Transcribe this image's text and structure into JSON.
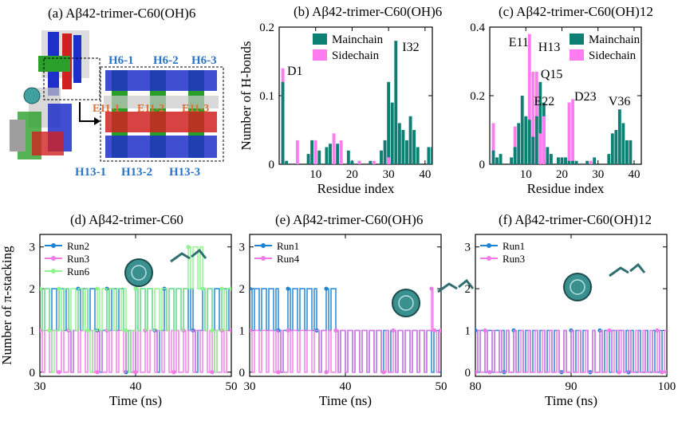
{
  "panels": {
    "a": {
      "title": "(a) Aβ42-trimer-C60(OH)6",
      "labels": [
        "H6-1",
        "H6-2",
        "H6-3",
        "E11-1",
        "E11-2",
        "E11-3",
        "H13-1",
        "H13-2",
        "H13-3"
      ]
    },
    "d_molecule_note": "",
    "colors": {
      "mainchain": "#0e7f73",
      "sidechain": "#ff7bf0",
      "run_blue": "#1f83d3",
      "run_pink": "#ee7be8",
      "run_green": "#8cf58a"
    }
  },
  "chart_data": [
    {
      "id": "b",
      "type": "bar",
      "title": "(b) Aβ42-trimer-C60(OH)6",
      "xlabel": "Residue index",
      "ylabel": "Number of H-bonds",
      "xlim": [
        0,
        42
      ],
      "ylim": [
        0,
        0.2
      ],
      "xticks": [
        10,
        20,
        30,
        40
      ],
      "yticks": [
        0,
        0.1,
        0.2
      ],
      "legend": {
        "placement": "top-left",
        "entries": [
          "Mainchain",
          "Sidechain"
        ]
      },
      "annotations": [
        {
          "text": "D1",
          "x": 1
        },
        {
          "text": "I32",
          "x": 32
        }
      ],
      "series": [
        {
          "name": "Mainchain",
          "residues": [
            1,
            2,
            8,
            9,
            11,
            13,
            14,
            16,
            19,
            20,
            22,
            25,
            28,
            29,
            30,
            31,
            32,
            33,
            34,
            35,
            36,
            37,
            38,
            41,
            42
          ],
          "values": [
            0.12,
            0.005,
            0.015,
            0.035,
            0.02,
            0.025,
            0.03,
            0.03,
            0.02,
            0.005,
            0.005,
            0.005,
            0.02,
            0.035,
            0.12,
            0.09,
            0.18,
            0.06,
            0.05,
            0.035,
            0.07,
            0.05,
            0.025,
            0.025,
            0.025
          ]
        },
        {
          "name": "Sidechain",
          "residues": [
            1,
            5,
            10,
            15,
            17,
            22,
            26,
            30
          ],
          "values": [
            0.14,
            0.035,
            0.035,
            0.045,
            0.035,
            0.005,
            0.005,
            0.01
          ]
        }
      ]
    },
    {
      "id": "c",
      "type": "bar",
      "title": "(c) Aβ42-trimer-C60(OH)12",
      "xlabel": "Residue index",
      "ylabel": "",
      "xlim": [
        0,
        42
      ],
      "ylim": [
        0,
        0.4
      ],
      "xticks": [
        10,
        20,
        30,
        40
      ],
      "yticks": [
        0,
        0.2,
        0.4
      ],
      "legend": {
        "placement": "top-right",
        "entries": [
          "Mainchain",
          "Sidechain"
        ]
      },
      "annotations": [
        {
          "text": "E11",
          "x": 11
        },
        {
          "text": "H13",
          "x": 13
        },
        {
          "text": "Q15",
          "x": 15
        },
        {
          "text": "E22",
          "x": 22
        },
        {
          "text": "D23",
          "x": 23
        },
        {
          "text": "V36",
          "x": 36
        }
      ],
      "series": [
        {
          "name": "Mainchain",
          "residues": [
            1,
            2,
            3,
            6,
            7,
            8,
            9,
            10,
            11,
            12,
            13,
            14,
            15,
            16,
            17,
            19,
            20,
            21,
            22,
            23,
            24,
            27,
            29,
            33,
            34,
            35,
            36,
            37,
            38,
            39
          ],
          "values": [
            0.04,
            0.02,
            0.03,
            0.02,
            0.05,
            0.12,
            0.2,
            0.14,
            0.13,
            0.08,
            0.14,
            0.24,
            0.18,
            0.05,
            0.03,
            0.02,
            0.02,
            0.02,
            0.01,
            0.01,
            0.01,
            0.01,
            0.02,
            0.03,
            0.09,
            0.1,
            0.16,
            0.12,
            0.07,
            0.07
          ]
        },
        {
          "name": "Sidechain",
          "residues": [
            1,
            7,
            11,
            12,
            13,
            14,
            15,
            22,
            23,
            28
          ],
          "values": [
            0.12,
            0.11,
            0.38,
            0.27,
            0.27,
            0.09,
            0.14,
            0.18,
            0.19,
            0.01
          ]
        }
      ]
    },
    {
      "id": "d",
      "type": "line",
      "title": "(d) Aβ42-trimer-C60",
      "xlabel": "Time (ns)",
      "ylabel": "Number of π-stacking",
      "xlim": [
        30,
        50
      ],
      "ylim": [
        -0.1,
        3.3
      ],
      "xticks": [
        30,
        40,
        50
      ],
      "yticks": [
        0,
        1,
        2,
        3
      ],
      "legend": {
        "placement": "top-left",
        "entries": [
          "Run2",
          "Run3",
          "Run6"
        ]
      },
      "series": [
        {
          "name": "Run2",
          "summary": "fluctuates mostly between 1 and 2 over 30-50 ns",
          "segments": [
            [
              30,
              2
            ],
            [
              33,
              1
            ],
            [
              34,
              2
            ],
            [
              36,
              1
            ],
            [
              37,
              2
            ],
            [
              39,
              0
            ],
            [
              40,
              2
            ],
            [
              42,
              1
            ],
            [
              43,
              2
            ],
            [
              46,
              1
            ],
            [
              47,
              2
            ],
            [
              50,
              2
            ]
          ]
        },
        {
          "name": "Run3",
          "summary": "fluctuates between 0 and 1",
          "segments": [
            [
              30,
              1
            ],
            [
              32,
              0
            ],
            [
              33,
              1
            ],
            [
              36,
              0
            ],
            [
              37,
              1
            ],
            [
              40,
              0
            ],
            [
              41,
              1
            ],
            [
              44,
              0
            ],
            [
              45,
              1
            ],
            [
              48,
              0
            ],
            [
              49,
              1
            ],
            [
              50,
              1
            ]
          ]
        },
        {
          "name": "Run6",
          "summary": "mostly 1-2 with excursions to 3 near 45.5-47 ns",
          "segments": [
            [
              30,
              2
            ],
            [
              31,
              1
            ],
            [
              32,
              2
            ],
            [
              35,
              1
            ],
            [
              36,
              2
            ],
            [
              39,
              1
            ],
            [
              40,
              2
            ],
            [
              45.5,
              3
            ],
            [
              47,
              2
            ],
            [
              48,
              1
            ],
            [
              49,
              2
            ],
            [
              50,
              2
            ]
          ]
        }
      ]
    },
    {
      "id": "e",
      "type": "line",
      "title": "(e) Aβ42-trimer-C60(OH)6",
      "xlabel": "Time (ns)",
      "ylabel": "",
      "xlim": [
        30,
        50
      ],
      "ylim": [
        -0.1,
        3.3
      ],
      "xticks": [
        30,
        40,
        50
      ],
      "yticks": [
        0,
        1,
        2,
        3
      ],
      "legend": {
        "placement": "top-left",
        "entries": [
          "Run1",
          "Run4"
        ]
      },
      "series": [
        {
          "name": "Run1",
          "summary": "mostly 2 until about 39 ns, then 1",
          "segments": [
            [
              30,
              2
            ],
            [
              33,
              1
            ],
            [
              34,
              2
            ],
            [
              37,
              1
            ],
            [
              38,
              2
            ],
            [
              39,
              1
            ],
            [
              50,
              1
            ]
          ]
        },
        {
          "name": "Run4",
          "summary": "fluctuates between 0 and 1, brief spike to 2 near 49 ns",
          "segments": [
            [
              30,
              1
            ],
            [
              33,
              0
            ],
            [
              34,
              1
            ],
            [
              38,
              0
            ],
            [
              39,
              1
            ],
            [
              44,
              0
            ],
            [
              45,
              1
            ],
            [
              49,
              2
            ],
            [
              49.3,
              1
            ],
            [
              50,
              1
            ]
          ]
        }
      ]
    },
    {
      "id": "f",
      "type": "line",
      "title": "(f) Aβ42-trimer-C60(OH)12",
      "xlabel": "Time (ns)",
      "ylabel": "",
      "xlim": [
        80,
        100
      ],
      "ylim": [
        -0.1,
        3.3
      ],
      "xticks": [
        80,
        90,
        100
      ],
      "yticks": [
        0,
        1,
        2,
        3
      ],
      "legend": {
        "placement": "top-left",
        "entries": [
          "Run1",
          "Run3"
        ]
      },
      "series": [
        {
          "name": "Run1",
          "summary": "fluctuates between 0 and 1, ends near 0 after ~96 ns",
          "segments": [
            [
              80,
              1
            ],
            [
              83,
              0
            ],
            [
              84,
              1
            ],
            [
              89,
              0
            ],
            [
              90,
              1
            ],
            [
              92,
              0
            ],
            [
              93,
              1
            ],
            [
              96,
              0
            ],
            [
              100,
              0
            ]
          ]
        },
        {
          "name": "Run3",
          "summary": "mostly 0 with brief jumps to 1",
          "segments": [
            [
              80,
              0
            ],
            [
              81,
              1
            ],
            [
              81.5,
              0
            ],
            [
              94,
              1
            ],
            [
              95,
              0
            ],
            [
              99,
              1
            ],
            [
              99.5,
              0
            ],
            [
              100,
              0
            ]
          ]
        }
      ]
    }
  ]
}
